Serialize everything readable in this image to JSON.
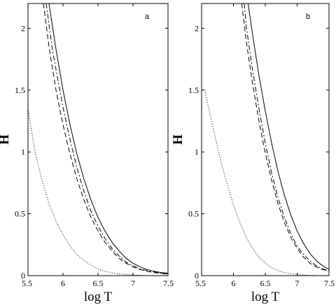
{
  "chart_data": [
    {
      "type": "line",
      "panel_label": "a",
      "xlabel": "log T",
      "ylabel": "H",
      "xlim": [
        5.5,
        7.5
      ],
      "ylim": [
        0,
        2.2
      ],
      "xticks": [
        "5.5",
        "6",
        "6.5",
        "7",
        "7.5"
      ],
      "yticks": [
        "0",
        "0.5",
        "1",
        "1.5",
        "2"
      ],
      "grid": false,
      "series": [
        {
          "style": "solid",
          "x": [
            5.8,
            5.9,
            6.0,
            6.1,
            6.2,
            6.3,
            6.4,
            6.5,
            6.6,
            6.7,
            6.8,
            6.9,
            7.0,
            7.1,
            7.2,
            7.3,
            7.4,
            7.5
          ],
          "values": [
            2.2,
            1.83,
            1.5,
            1.22,
            0.98,
            0.78,
            0.61,
            0.47,
            0.36,
            0.27,
            0.2,
            0.14,
            0.1,
            0.07,
            0.05,
            0.035,
            0.025,
            0.02
          ]
        },
        {
          "style": "dashdot",
          "x": [
            5.76,
            5.85,
            6.0,
            6.1,
            6.2,
            6.3,
            6.4,
            6.5,
            6.6,
            6.7,
            6.8,
            6.9,
            7.0,
            7.1,
            7.2,
            7.3,
            7.4,
            7.5
          ],
          "values": [
            2.2,
            1.82,
            1.36,
            1.1,
            0.87,
            0.68,
            0.52,
            0.4,
            0.3,
            0.22,
            0.16,
            0.11,
            0.08,
            0.055,
            0.04,
            0.03,
            0.02,
            0.015
          ]
        },
        {
          "style": "dashed",
          "x": [
            5.72,
            5.8,
            5.9,
            6.0,
            6.1,
            6.2,
            6.3,
            6.4,
            6.5,
            6.6,
            6.7,
            6.8,
            6.9,
            7.0,
            7.1,
            7.2,
            7.3,
            7.4,
            7.5
          ],
          "values": [
            2.2,
            1.85,
            1.5,
            1.22,
            0.98,
            0.78,
            0.61,
            0.47,
            0.36,
            0.27,
            0.2,
            0.14,
            0.1,
            0.07,
            0.05,
            0.035,
            0.025,
            0.018,
            0.012
          ]
        },
        {
          "style": "dotted",
          "x": [
            5.5,
            5.6,
            5.7,
            5.8,
            5.9,
            6.0,
            6.1,
            6.2,
            6.3,
            6.4,
            6.5,
            6.6,
            6.7,
            6.8,
            6.9,
            7.0,
            7.1,
            7.2
          ],
          "values": [
            1.35,
            1.0,
            0.77,
            0.58,
            0.44,
            0.33,
            0.24,
            0.17,
            0.12,
            0.085,
            0.055,
            0.035,
            0.022,
            0.013,
            0.008,
            0.005,
            0.002,
            0.0
          ]
        }
      ]
    },
    {
      "type": "line",
      "panel_label": "b",
      "xlabel": "log T",
      "ylabel": "H",
      "xlim": [
        5.5,
        7.5
      ],
      "ylim": [
        0,
        2.2
      ],
      "xticks": [
        "5.5",
        "6",
        "6.5",
        "7",
        "7.5"
      ],
      "yticks": [
        "0",
        "0.5",
        "1",
        "1.5",
        "2"
      ],
      "grid": false,
      "series": [
        {
          "style": "solid",
          "x": [
            6.23,
            6.3,
            6.4,
            6.5,
            6.6,
            6.7,
            6.8,
            6.9,
            7.0,
            7.1,
            7.2,
            7.3,
            7.4,
            7.5
          ],
          "values": [
            2.2,
            1.95,
            1.62,
            1.33,
            1.07,
            0.84,
            0.65,
            0.49,
            0.36,
            0.26,
            0.18,
            0.12,
            0.08,
            0.05
          ]
        },
        {
          "style": "dashdot",
          "x": [
            6.17,
            6.2,
            6.3,
            6.4,
            6.5,
            6.6,
            6.7,
            6.8,
            6.9,
            7.0,
            7.1,
            7.2,
            7.3,
            7.4,
            7.5
          ],
          "values": [
            2.2,
            2.02,
            1.66,
            1.35,
            1.07,
            0.83,
            0.63,
            0.47,
            0.34,
            0.24,
            0.17,
            0.12,
            0.08,
            0.055,
            0.04
          ]
        },
        {
          "style": "dashed",
          "x": [
            6.13,
            6.2,
            6.3,
            6.4,
            6.5,
            6.6,
            6.7,
            6.8,
            6.9,
            7.0,
            7.1,
            7.2,
            7.3,
            7.4,
            7.5
          ],
          "values": [
            2.2,
            1.9,
            1.55,
            1.25,
            0.99,
            0.77,
            0.58,
            0.43,
            0.31,
            0.22,
            0.15,
            0.1,
            0.07,
            0.05,
            0.035
          ]
        },
        {
          "style": "dotted",
          "x": [
            5.55,
            5.6,
            5.7,
            5.8,
            5.9,
            6.0,
            6.1,
            6.2,
            6.3,
            6.4,
            6.5,
            6.6,
            6.7,
            6.8,
            6.9,
            7.0,
            7.1,
            7.2,
            7.3
          ],
          "values": [
            1.5,
            1.38,
            1.15,
            0.93,
            0.74,
            0.57,
            0.43,
            0.31,
            0.22,
            0.15,
            0.1,
            0.065,
            0.04,
            0.025,
            0.015,
            0.009,
            0.005,
            0.002,
            0.0
          ]
        }
      ]
    }
  ]
}
